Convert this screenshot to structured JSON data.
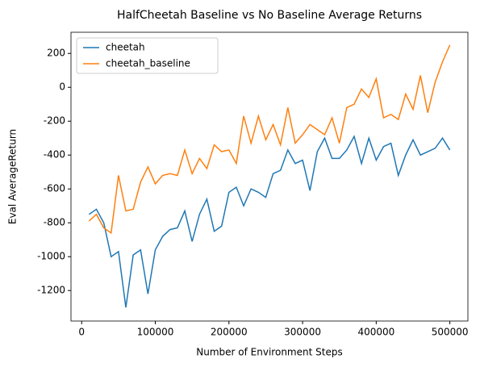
{
  "chart_data": {
    "type": "line",
    "title": "HalfCheetah Baseline vs No Baseline Average Returns",
    "x_label": "Number of Environment Steps",
    "y_label": "Eval AverageReturn",
    "x": [
      10000,
      20000,
      30000,
      40000,
      50000,
      60000,
      70000,
      80000,
      90000,
      100000,
      110000,
      120000,
      130000,
      140000,
      150000,
      160000,
      170000,
      180000,
      190000,
      200000,
      210000,
      220000,
      230000,
      240000,
      250000,
      260000,
      270000,
      280000,
      290000,
      300000,
      310000,
      320000,
      330000,
      340000,
      350000,
      360000,
      370000,
      380000,
      390000,
      400000,
      410000,
      420000,
      430000,
      440000,
      450000,
      460000,
      470000,
      480000,
      490000,
      500000
    ],
    "series": [
      {
        "name": "cheetah",
        "color": "#1f77b4",
        "values": [
          -750,
          -720,
          -800,
          -1000,
          -970,
          -1300,
          -990,
          -960,
          -1220,
          -960,
          -880,
          -840,
          -830,
          -730,
          -910,
          -750,
          -660,
          -850,
          -820,
          -620,
          -590,
          -700,
          -600,
          -620,
          -650,
          -510,
          -490,
          -370,
          -450,
          -430,
          -610,
          -380,
          -300,
          -420,
          -420,
          -370,
          -290,
          -450,
          -300,
          -430,
          -350,
          -330,
          -520,
          -400,
          -310,
          -400,
          -380,
          -360,
          -300,
          -370
        ]
      },
      {
        "name": "cheetah_baseline",
        "color": "#ff7f0e",
        "values": [
          -790,
          -750,
          -830,
          -860,
          -520,
          -730,
          -720,
          -560,
          -470,
          -570,
          -520,
          -510,
          -520,
          -370,
          -510,
          -420,
          -480,
          -340,
          -380,
          -370,
          -450,
          -170,
          -330,
          -170,
          -310,
          -220,
          -340,
          -120,
          -330,
          -280,
          -220,
          -250,
          -280,
          -180,
          -330,
          -120,
          -100,
          -10,
          -60,
          50,
          -180,
          -160,
          -190,
          -40,
          -130,
          70,
          -150,
          30,
          150,
          250
        ]
      }
    ],
    "xlim": [
      -14500,
      524500
    ],
    "ylim": [
      -1380,
      325
    ],
    "xticks": [
      0,
      100000,
      200000,
      300000,
      400000,
      500000
    ],
    "yticks": [
      -1200,
      -1000,
      -800,
      -600,
      -400,
      -200,
      0,
      200
    ],
    "grid": false,
    "legend": "upper left"
  }
}
